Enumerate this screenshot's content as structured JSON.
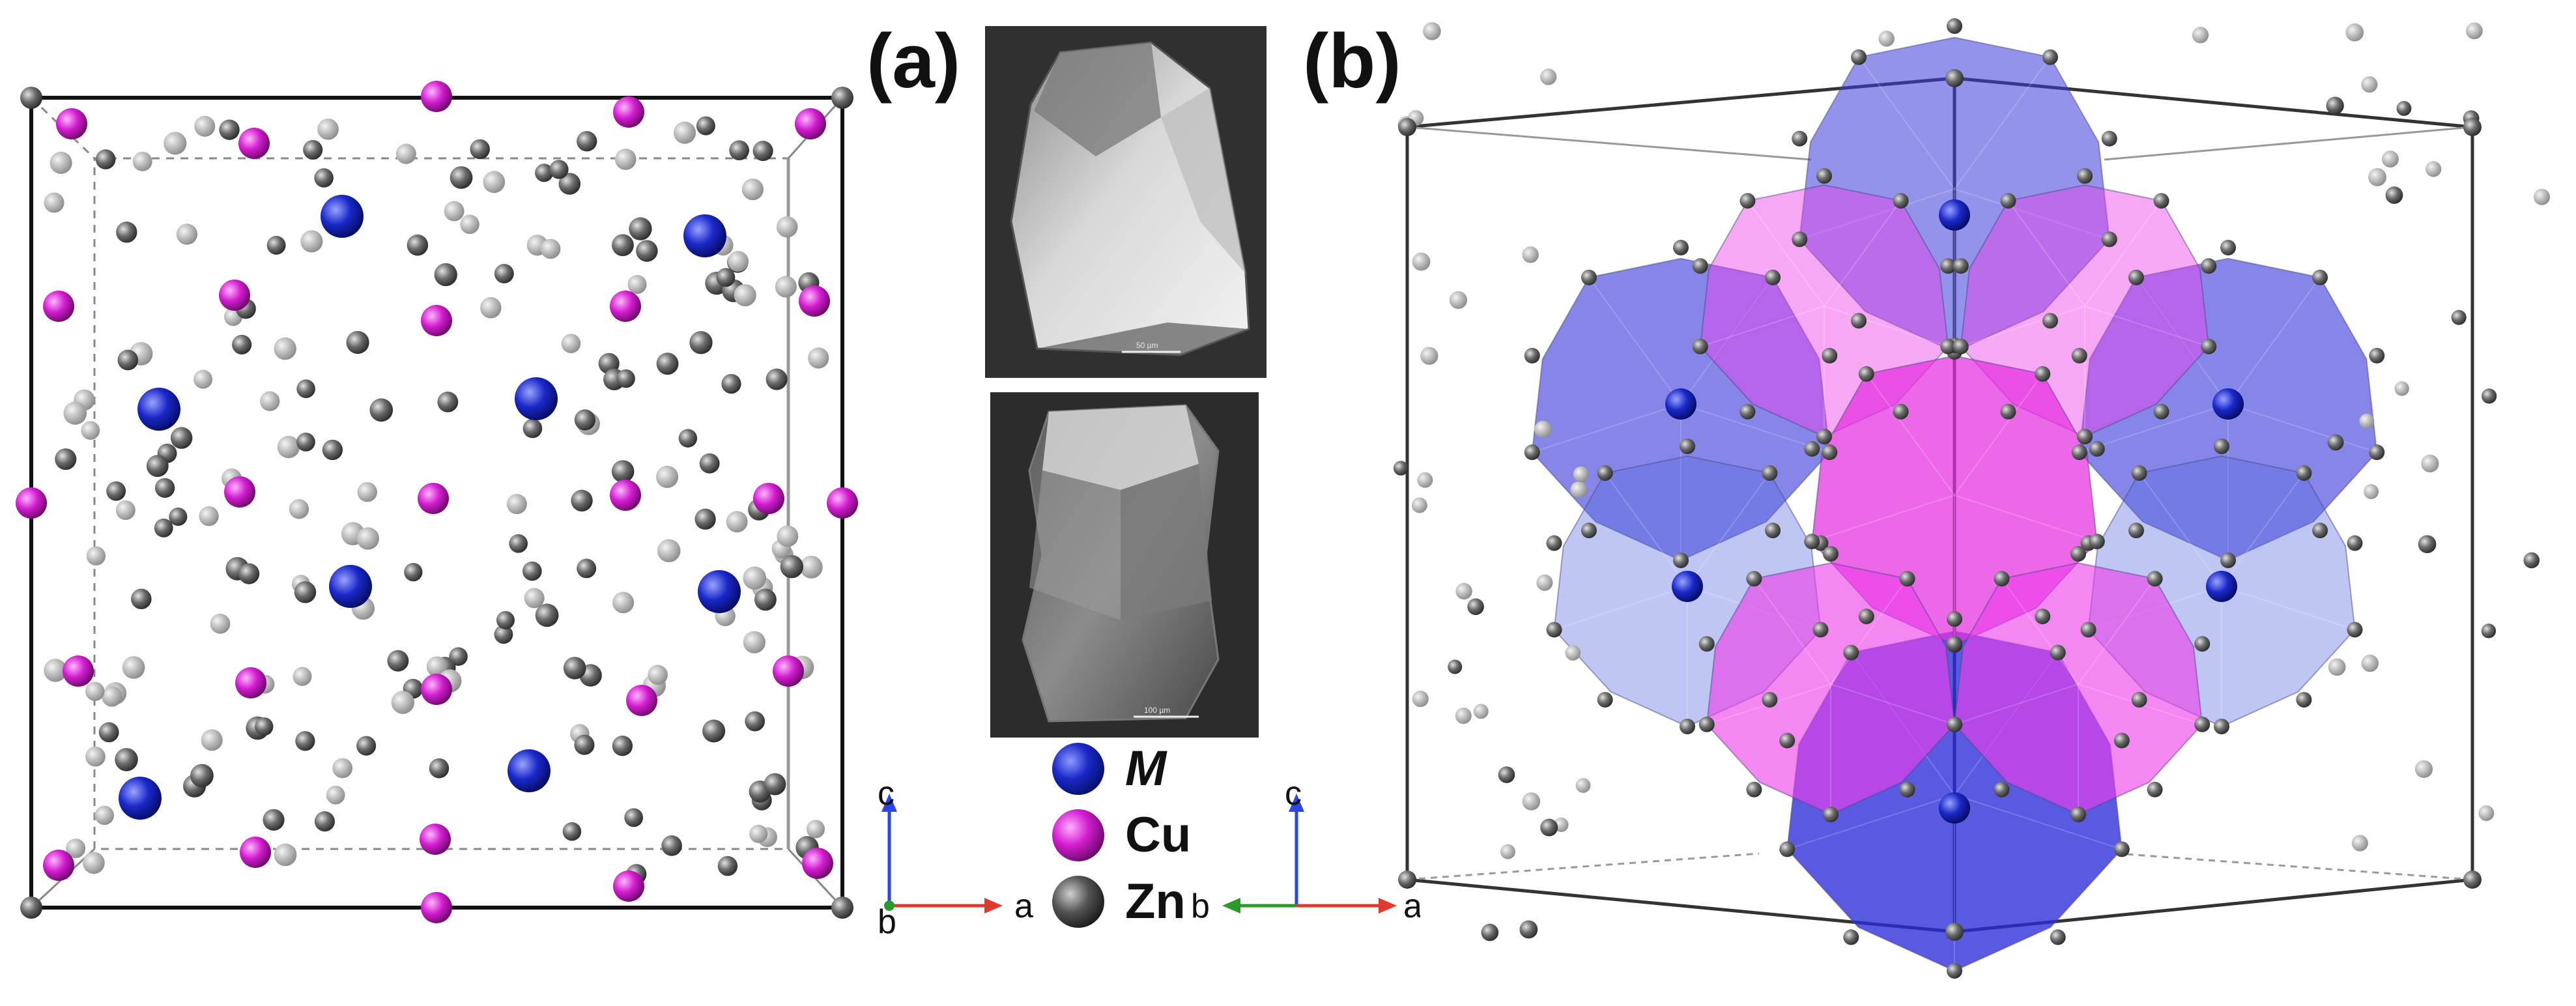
{
  "panels": {
    "a_label": "(a)",
    "b_label": "(b)"
  },
  "legend": {
    "items": [
      {
        "label": "M",
        "italic": true,
        "color": "#1a28c8"
      },
      {
        "label": "Cu",
        "italic": false,
        "color": "#d21ccf"
      },
      {
        "label": "Zn",
        "italic": false,
        "color": "#555555"
      }
    ]
  },
  "axes_a": {
    "c": "c",
    "a": "a",
    "b": "b"
  },
  "axes_b": {
    "c": "c",
    "a": "a",
    "b": "b"
  },
  "sem_images": {
    "top_scale": "50 µm",
    "bottom_scale": "100 µm"
  },
  "colors": {
    "M_atom": "#1a28c8",
    "Cu_atom": "#d21ccf",
    "Zn_atom": "#6a6a6a",
    "M_polyhedron": "#3b3bdc",
    "Cu_polyhedron": "#ee3ee8",
    "axis_c": "#2a46e6",
    "axis_a": "#e03a2e",
    "axis_b": "#2a9a2a"
  }
}
